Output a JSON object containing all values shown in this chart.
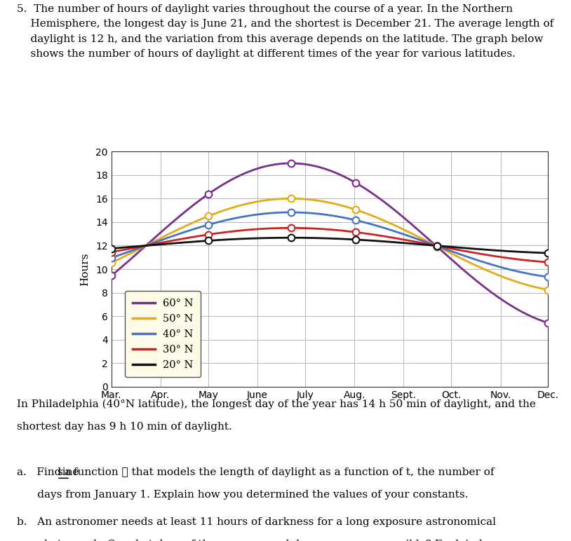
{
  "ylabel": "Hours",
  "ylim": [
    0,
    20
  ],
  "yticks": [
    0,
    2,
    4,
    6,
    8,
    10,
    12,
    14,
    16,
    18,
    20
  ],
  "month_labels": [
    "Mar.",
    "Apr.",
    "May",
    "June",
    "July",
    "Aug.",
    "Sept.",
    "Oct.",
    "Nov.",
    "Dec."
  ],
  "month_positions": [
    59,
    90,
    120,
    151,
    181,
    212,
    243,
    273,
    304,
    334
  ],
  "latitudes": [
    "60° N",
    "50° N",
    "40° N",
    "30° N",
    "20° N"
  ],
  "colors": [
    "#7B2D8B",
    "#E6A817",
    "#4472C4",
    "#CC2222",
    "#111111"
  ],
  "amplitudes": [
    7.0,
    4.0,
    2.83,
    1.5,
    0.67
  ],
  "average": 12,
  "peak_day": 172,
  "period": 365,
  "start_day": 59,
  "end_day": 334,
  "circle_marker_days": [
    59,
    120,
    172,
    213,
    264,
    334
  ],
  "legend_facecolor": "#FEFAE8",
  "legend_edgecolor": "#555555",
  "background_color": "#ffffff",
  "grid_color": "#bbbbbb",
  "linewidth": 2.0,
  "marker_size": 7
}
